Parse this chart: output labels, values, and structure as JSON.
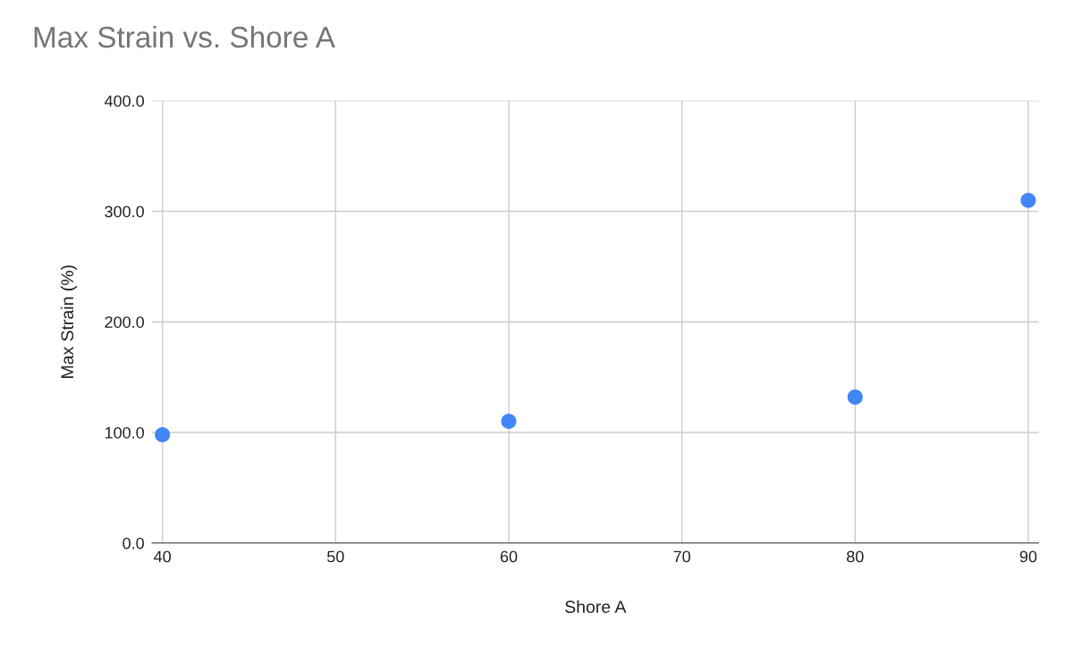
{
  "chart_data": {
    "type": "scatter",
    "title": "Max Strain vs. Shore A",
    "xlabel": "Shore A",
    "ylabel": "Max Strain (%)",
    "x": [
      40,
      60,
      80,
      90
    ],
    "series": [
      {
        "color": "#4285f4",
        "values": [
          98,
          110,
          132,
          310
        ]
      }
    ],
    "xlim": [
      39.4,
      90.6
    ],
    "xticks": [
      40,
      50,
      60,
      70,
      80,
      90
    ],
    "ylim": [
      0,
      400
    ],
    "yticks": [
      {
        "value": 0,
        "label": "0.0"
      },
      {
        "value": 100,
        "label": "100.0"
      },
      {
        "value": 200,
        "label": "200.0"
      },
      {
        "value": 300,
        "label": "300.0"
      },
      {
        "value": 400,
        "label": "400.0"
      }
    ],
    "grid": true,
    "marker": "circle"
  }
}
